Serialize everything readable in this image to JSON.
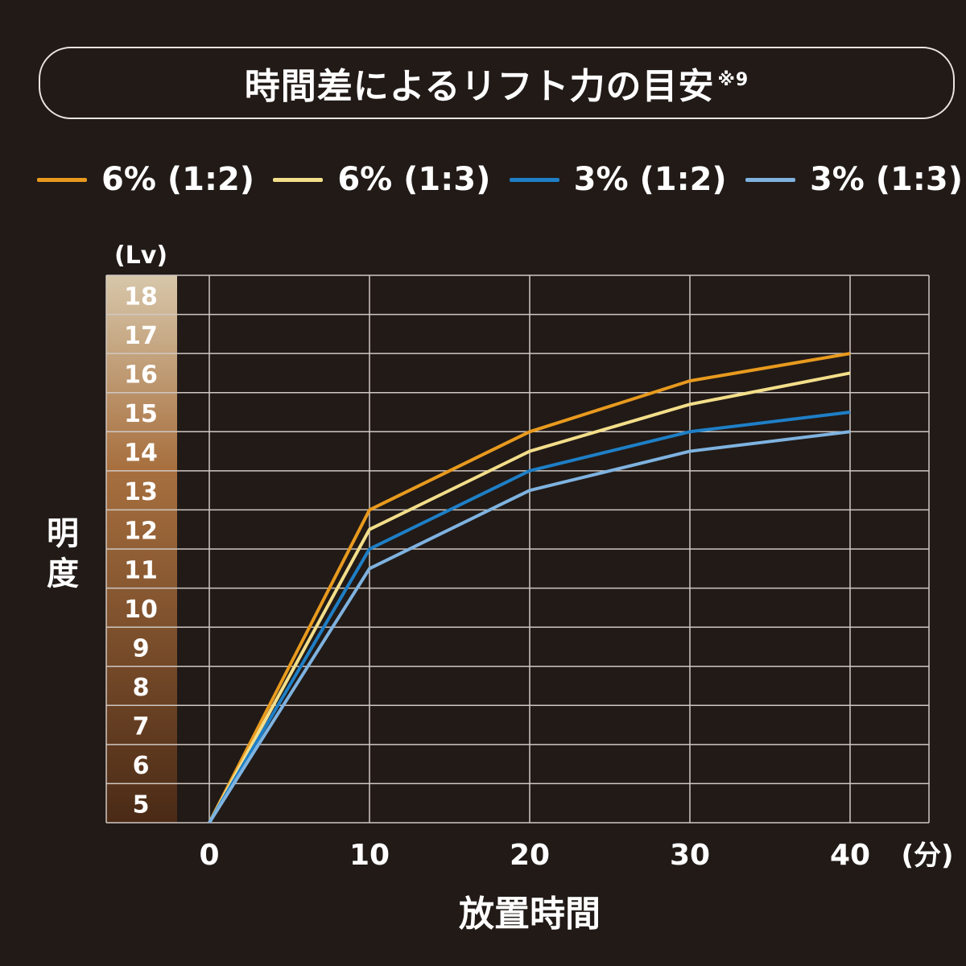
{
  "title": {
    "text": "時間差によるリフト力の目安",
    "note": "※9"
  },
  "colors": {
    "background": "#211a17",
    "grid": "#cfc8c3",
    "series": [
      "#e89a1e",
      "#f3de8a",
      "#1e7fc6",
      "#7fb3e0"
    ],
    "scale_top": "#d7c7aa",
    "scale_bottom": "#4a2a16"
  },
  "chart_data": {
    "type": "line",
    "title": "時間差によるリフト力の目安",
    "xlabel": "放置時間",
    "x_unit": "(分)",
    "ylabel": "明度",
    "y_unit": "(Lv)",
    "x": [
      0,
      10,
      20,
      30,
      40
    ],
    "xlim": [
      0,
      40
    ],
    "ylim": [
      4,
      18
    ],
    "y_ticks": [
      18,
      17,
      16,
      15,
      14,
      13,
      12,
      11,
      10,
      9,
      8,
      7,
      6,
      5
    ],
    "x_ticks": [
      "0",
      "10",
      "20",
      "30",
      "40"
    ],
    "grid": true,
    "legend_position": "top",
    "series": [
      {
        "name": "6% (1:2)",
        "values": [
          4,
          12,
          14,
          15.3,
          16
        ]
      },
      {
        "name": "6% (1:3)",
        "values": [
          4,
          11.5,
          13.5,
          14.7,
          15.5
        ]
      },
      {
        "name": "3% (1:2)",
        "values": [
          4,
          11,
          13,
          14,
          14.5
        ]
      },
      {
        "name": "3% (1:3)",
        "values": [
          4,
          10.5,
          12.5,
          13.5,
          14
        ]
      }
    ]
  }
}
